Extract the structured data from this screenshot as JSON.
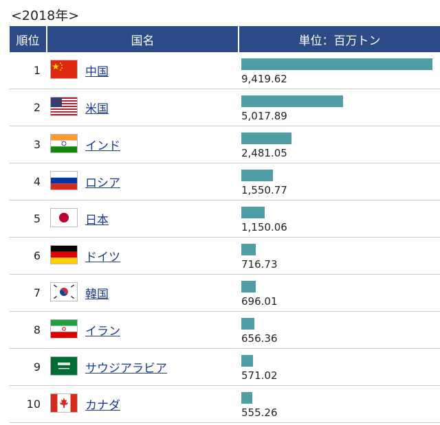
{
  "caption": "<2018年>",
  "header": {
    "rank": "順位",
    "country": "国名",
    "unit": "単位：百万トン"
  },
  "chart_data": {
    "type": "bar",
    "title": "<2018年>",
    "unit": "単位：百万トン",
    "categories": [
      "中国",
      "米国",
      "インド",
      "ロシア",
      "日本",
      "ドイツ",
      "韓国",
      "イラン",
      "サウジアラビア",
      "カナダ"
    ],
    "values": [
      9419.62,
      5017.89,
      2481.05,
      1550.77,
      1150.06,
      716.73,
      696.01,
      656.36,
      571.02,
      555.26
    ],
    "value_labels": [
      "9,419.62",
      "5,017.89",
      "2,481.05",
      "1,550.77",
      "1,150.06",
      "716.73",
      "696.01",
      "656.36",
      "571.02",
      "555.26"
    ],
    "ranks": [
      "1",
      "2",
      "3",
      "4",
      "5",
      "6",
      "7",
      "8",
      "9",
      "10"
    ],
    "flags": [
      "china-flag",
      "usa-flag",
      "india-flag",
      "russia-flag",
      "japan-flag",
      "germany-flag",
      "korea-flag",
      "iran-flag",
      "saudi-arabia-flag",
      "canada-flag"
    ],
    "bar_color": "#4f9da5"
  }
}
